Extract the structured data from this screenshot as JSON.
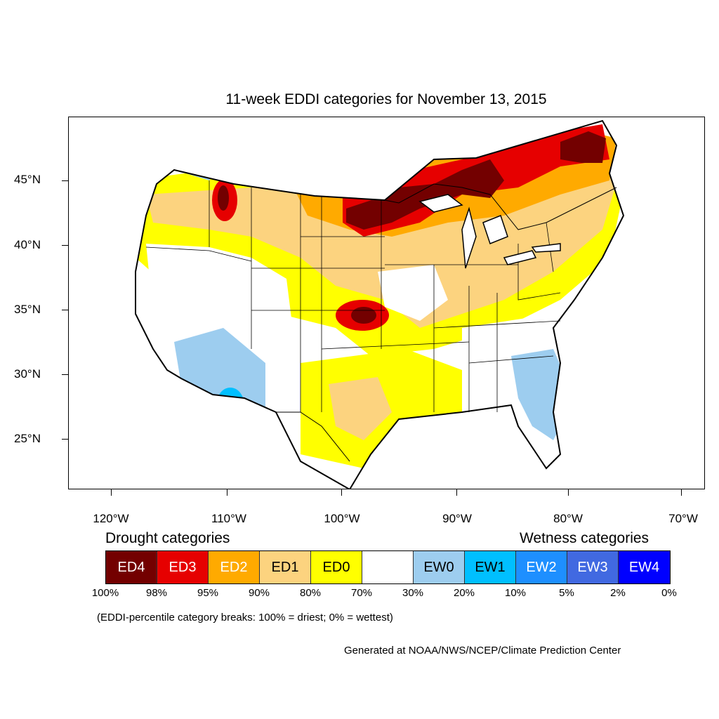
{
  "title": "11-week EDDI categories for November 13, 2015",
  "lat_labels": [
    "45°N",
    "40°N",
    "35°N",
    "30°N",
    "25°N"
  ],
  "lon_labels": [
    "120°W",
    "110°W",
    "100°W",
    "90°W",
    "80°W",
    "70°W"
  ],
  "legend": {
    "drought_heading": "Drought categories",
    "wetness_heading": "Wetness categories",
    "categories": [
      {
        "label": "ED4",
        "color": "#730000",
        "text_color": "#ffffff"
      },
      {
        "label": "ED3",
        "color": "#e60000",
        "text_color": "#ffffff"
      },
      {
        "label": "ED2",
        "color": "#ffaa00",
        "text_color": "#ffffff"
      },
      {
        "label": "ED1",
        "color": "#fcd37f",
        "text_color": "#000000"
      },
      {
        "label": "ED0",
        "color": "#ffff00",
        "text_color": "#000000"
      },
      {
        "label": "",
        "color": "#ffffff",
        "text_color": "#000000"
      },
      {
        "label": "EW0",
        "color": "#9dcdef",
        "text_color": "#000000"
      },
      {
        "label": "EW1",
        "color": "#00bfff",
        "text_color": "#000000"
      },
      {
        "label": "EW2",
        "color": "#1e8fff",
        "text_color": "#ffffff"
      },
      {
        "label": "EW3",
        "color": "#4169e1",
        "text_color": "#ffffff"
      },
      {
        "label": "EW4",
        "color": "#0000ff",
        "text_color": "#ffffff"
      }
    ],
    "breaks": [
      "100%",
      "98%",
      "95%",
      "90%",
      "80%",
      "70%",
      "30%",
      "20%",
      "10%",
      "5%",
      "2%",
      "0%"
    ]
  },
  "note": "(EDDI-percentile category breaks: 100% = driest; 0% = wettest)",
  "credit": "Generated at NOAA/NWS/NCEP/Climate Prediction Center"
}
